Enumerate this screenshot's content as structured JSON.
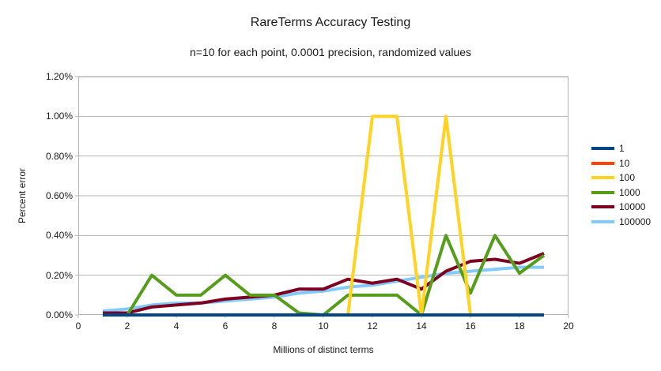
{
  "title": "RareTerms Accuracy Testing",
  "subtitle": "n=10 for each point, 0.0001 precision, randomized values",
  "chart_data": {
    "type": "line",
    "title": "RareTerms Accuracy Testing",
    "subtitle": "n=10 for each point, 0.0001 precision, randomized values",
    "xlabel": "Millions of distinct terms",
    "ylabel": "Percent error",
    "xlim": [
      0,
      20
    ],
    "ylim_pct": [
      0,
      1.2
    ],
    "grid": true,
    "legend_position": "right",
    "x_ticks": {
      "values": [
        0,
        2,
        4,
        6,
        8,
        10,
        12,
        14,
        16,
        18,
        20
      ],
      "labels": [
        "0",
        "2",
        "4",
        "6",
        "8",
        "10",
        "12",
        "14",
        "16",
        "18",
        "20"
      ]
    },
    "y_ticks": {
      "values": [
        0,
        0.2,
        0.4,
        0.6,
        0.8,
        1.0,
        1.2
      ],
      "labels": [
        "0.00%",
        "0.20%",
        "0.40%",
        "0.60%",
        "0.80%",
        "1.00%",
        "1.20%"
      ]
    },
    "x": [
      1,
      2,
      3,
      4,
      5,
      6,
      7,
      8,
      9,
      10,
      11,
      12,
      13,
      14,
      15,
      16,
      17,
      18,
      19
    ],
    "series": [
      {
        "name": "1",
        "color": "#004586",
        "values": [
          0,
          0,
          0,
          0,
          0,
          0,
          0,
          0,
          0,
          0,
          0,
          0,
          0,
          0,
          0,
          0,
          0,
          0,
          0
        ]
      },
      {
        "name": "10",
        "color": "#FF420E",
        "values": [
          0,
          0,
          0,
          0,
          0,
          0,
          0,
          0,
          0,
          0,
          0,
          0,
          0,
          0,
          0,
          0,
          0,
          0,
          0
        ]
      },
      {
        "name": "100",
        "color": "#FFD320",
        "values": [
          0,
          0,
          0,
          0,
          0,
          0,
          0,
          0,
          0,
          0,
          0,
          1.0,
          1.0,
          0,
          1.0,
          0,
          0,
          0,
          0
        ]
      },
      {
        "name": "1000",
        "color": "#579D1C",
        "values": [
          0,
          0,
          0.2,
          0.1,
          0.1,
          0.2,
          0.1,
          0.1,
          0.01,
          0,
          0.1,
          0.1,
          0.1,
          0,
          0.4,
          0.11,
          0.4,
          0.21,
          0.3
        ]
      },
      {
        "name": "10000",
        "color": "#7E0021",
        "values": [
          0.01,
          0.01,
          0.04,
          0.05,
          0.06,
          0.08,
          0.09,
          0.1,
          0.13,
          0.13,
          0.18,
          0.16,
          0.18,
          0.13,
          0.22,
          0.27,
          0.28,
          0.26,
          0.31
        ]
      },
      {
        "name": "100000",
        "color": "#83CAFF",
        "values": [
          0.02,
          0.03,
          0.05,
          0.06,
          0.06,
          0.07,
          0.08,
          0.09,
          0.11,
          0.12,
          0.14,
          0.15,
          0.17,
          0.19,
          0.21,
          0.22,
          0.23,
          0.24,
          0.24
        ]
      }
    ],
    "draw_order": [
      "100000",
      "10000",
      "1000",
      "100",
      "10",
      "1"
    ],
    "grid_color": "#b3b3b3",
    "line_width": 4
  }
}
